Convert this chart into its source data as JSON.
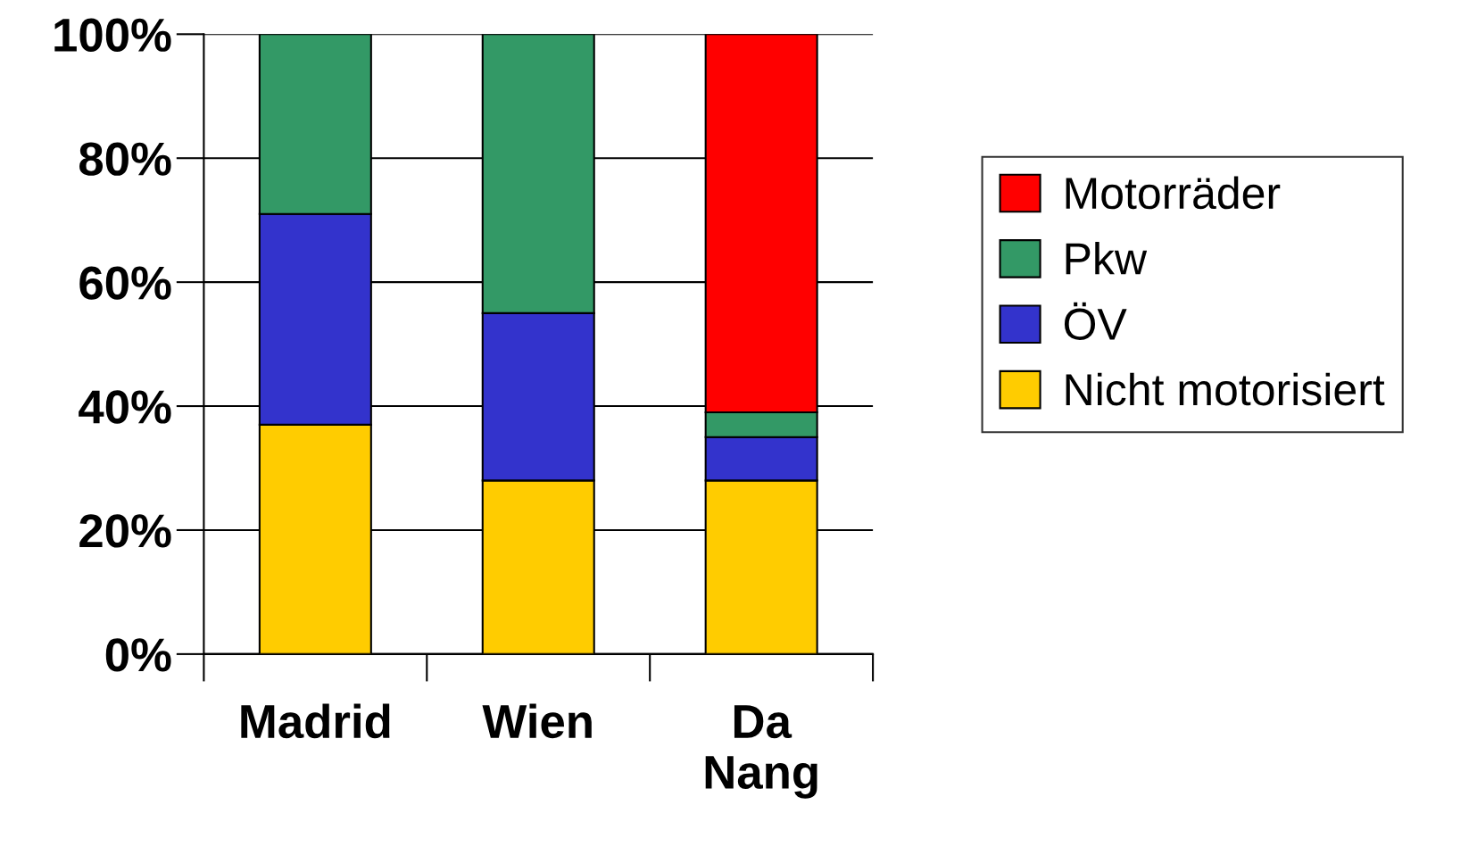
{
  "chart_data": {
    "type": "bar",
    "stacked": true,
    "categories": [
      "Madrid",
      "Wien",
      "Da Nang"
    ],
    "series": [
      {
        "name": "Nicht motorisiert",
        "color": "#ffcc00",
        "values": [
          37,
          28,
          28
        ]
      },
      {
        "name": "ÖV",
        "color": "#3333cc",
        "values": [
          34,
          27,
          7
        ]
      },
      {
        "name": "Pkw",
        "color": "#339966",
        "values": [
          29,
          45,
          4
        ]
      },
      {
        "name": "Motorräder",
        "color": "#ff0000",
        "values": [
          0,
          0,
          61
        ]
      }
    ],
    "ylim": [
      0,
      100
    ],
    "yticks": [
      {
        "value": 0,
        "label": "0%"
      },
      {
        "value": 20,
        "label": "20%"
      },
      {
        "value": 40,
        "label": "40%"
      },
      {
        "value": 60,
        "label": "60%"
      },
      {
        "value": 80,
        "label": "80%"
      },
      {
        "value": 100,
        "label": "100%"
      }
    ],
    "grid": "y",
    "legend": "right"
  }
}
